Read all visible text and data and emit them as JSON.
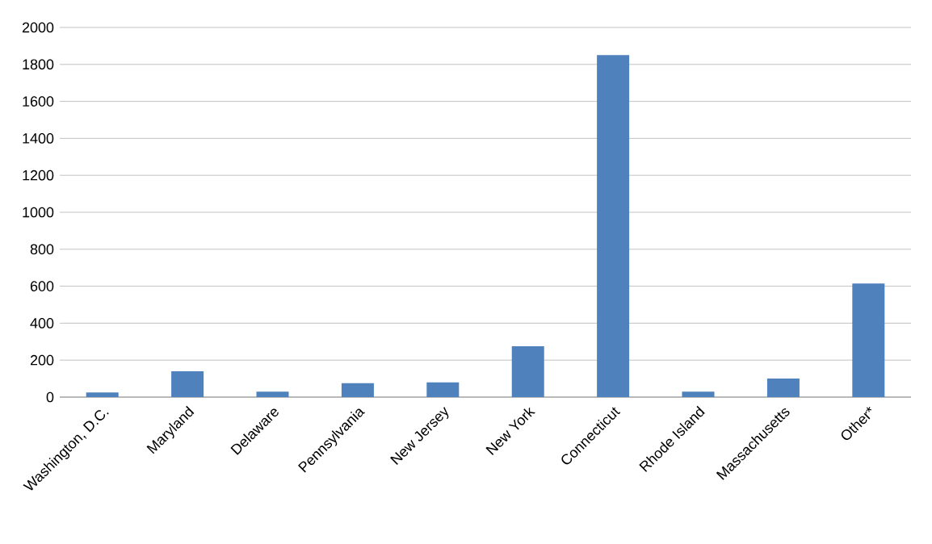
{
  "chart_data": {
    "type": "bar",
    "categories": [
      "Washington, D.C.",
      "Maryland",
      "Delaware",
      "Pennsylvania",
      "New Jersey",
      "New York",
      "Connecticut",
      "Rhode Island",
      "Massachusetts",
      "Other*"
    ],
    "values": [
      25,
      140,
      30,
      75,
      80,
      275,
      1850,
      30,
      100,
      615
    ],
    "color": "#4f81bd",
    "ylim": [
      0,
      2000
    ],
    "yticks": [
      0,
      200,
      400,
      600,
      800,
      1000,
      1200,
      1400,
      1600,
      1800,
      2000
    ],
    "grid": "y"
  }
}
